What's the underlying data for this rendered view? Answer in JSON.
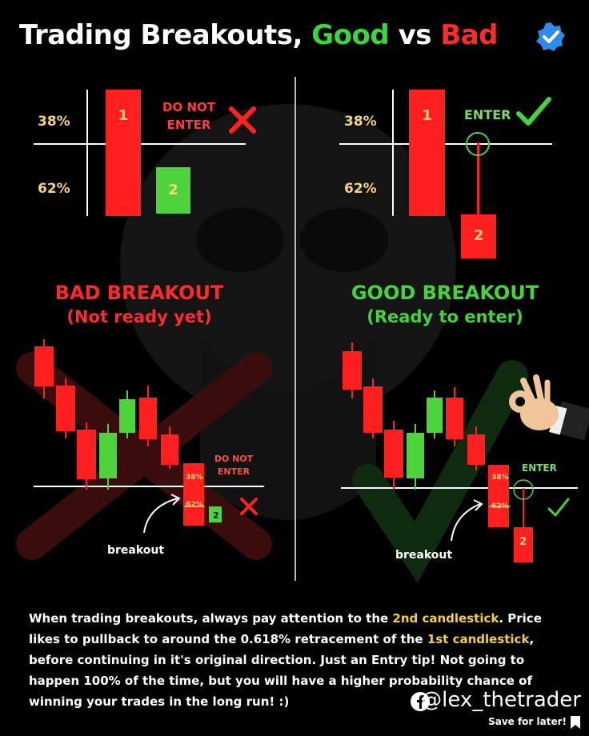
{
  "title": {
    "part1": "Trading Breakouts,",
    "good": "Good",
    "vs": "vs",
    "bad": "Bad"
  },
  "left_panel": {
    "pct_38": "38%",
    "pct_62": "62%",
    "candle_1": "1",
    "candle_2": "2",
    "warning_line1": "DO NOT",
    "warning_line2": "ENTER",
    "section_title": "BAD BREAKOUT",
    "section_subtitle": "(Not ready yet)",
    "chart_warning_line1": "DO NOT",
    "chart_warning_line2": "ENTER",
    "chart_pct_38": "38%",
    "chart_pct_62": "62%",
    "chart_candle_2": "2",
    "breakout_label": "breakout"
  },
  "right_panel": {
    "pct_38": "38%",
    "pct_62": "62%",
    "candle_1": "1",
    "candle_2": "2",
    "enter_label": "ENTER",
    "section_title": "GOOD BREAKOUT",
    "section_subtitle": "(Ready to enter)",
    "chart_enter_label": "ENTER",
    "chart_pct_38": "38%",
    "chart_pct_62": "62%",
    "chart_candle_2": "2",
    "breakout_label": "breakout"
  },
  "body": {
    "p1": "When trading breakouts, always pay attention to the ",
    "h1": "2nd candlestick",
    "p2": ". Price likes to pullback to around the 0.618% retracement of the ",
    "h2": "1st candlestick",
    "p3": ", before continuing in it's original direction. Just an Entry tip! Not going to happen 100% of the time, but you will have a higher probability chance of winning your trades in the long run! :)"
  },
  "footer": {
    "handle": "@lex_thetrader",
    "save": "Save for later!"
  },
  "colors": {
    "red": "#ff1f1f",
    "green": "#4cd43a",
    "gold": "#f4d03f",
    "bg": "#000000"
  }
}
